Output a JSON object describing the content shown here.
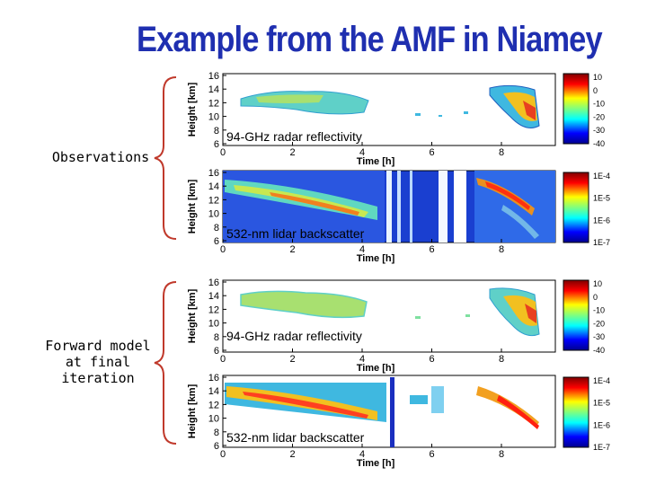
{
  "title": "Example from the AMF in Niamey",
  "groups": {
    "observations": "Observations",
    "forward_model": [
      "Forward model",
      "at final",
      "iteration"
    ]
  },
  "axes": {
    "ylabel": "Height [km]",
    "xlabel": "Time [h]",
    "y_ticks": [
      "16",
      "14",
      "12",
      "10",
      "8",
      "6"
    ],
    "x_ticks": [
      "0",
      "2",
      "4",
      "6",
      "8"
    ]
  },
  "panels": [
    {
      "label": "94-GHz radar reflectivity",
      "colorbar": [
        "10",
        "0",
        "-10",
        "-20",
        "-30",
        "-40"
      ]
    },
    {
      "label": "532-nm lidar backscatter",
      "colorbar": [
        "1E-4",
        "1E-5",
        "1E-6",
        "1E-7"
      ]
    },
    {
      "label": "94-GHz radar reflectivity",
      "colorbar": [
        "10",
        "0",
        "-10",
        "-20",
        "-30",
        "-40"
      ]
    },
    {
      "label": "532-nm lidar backscatter",
      "colorbar": [
        "1E-4",
        "1E-5",
        "1E-6",
        "1E-7"
      ]
    }
  ],
  "colors": {
    "title": "#1f2fb0",
    "brace": "#c0392b"
  }
}
